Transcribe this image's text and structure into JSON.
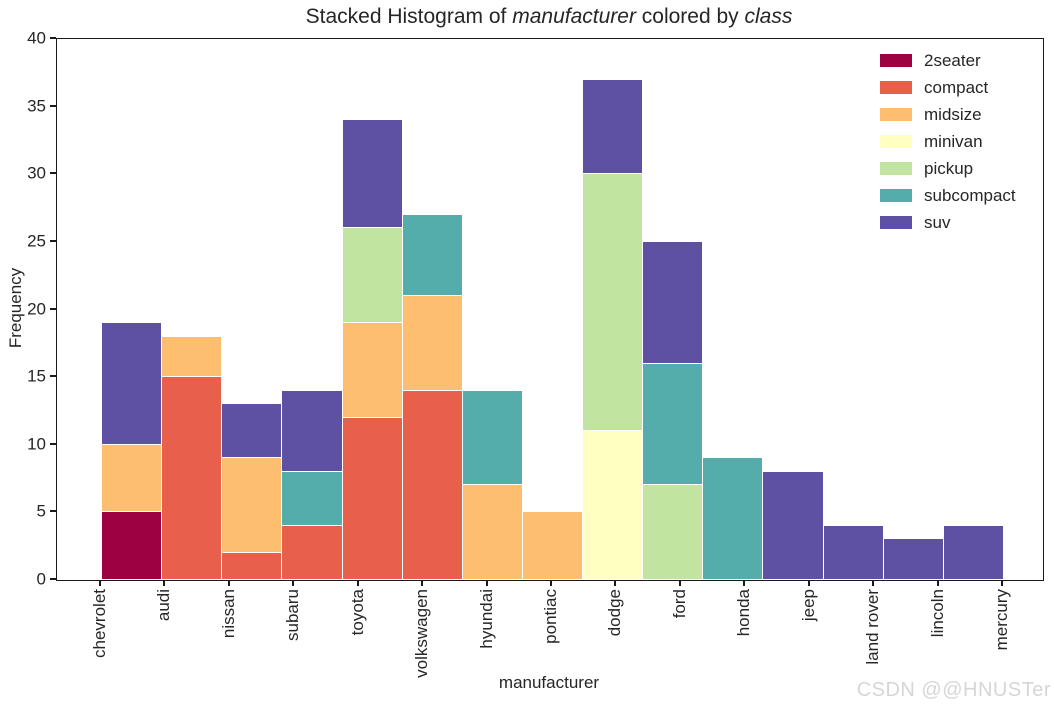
{
  "chart_data": {
    "type": "bar",
    "stacked": true,
    "title": "Stacked Histogram of manufacturer colored by class",
    "title_parts": [
      {
        "text": "Stacked Histogram of ",
        "italic": false
      },
      {
        "text": "manufacturer",
        "italic": true
      },
      {
        "text": " colored by ",
        "italic": false
      },
      {
        "text": "class",
        "italic": true
      }
    ],
    "xlabel": "manufacturer",
    "ylabel": "Frequency",
    "ylim": [
      0,
      40
    ],
    "yticks": [
      0,
      5,
      10,
      15,
      20,
      25,
      30,
      35,
      40
    ],
    "grid": false,
    "legend_position": "upper right",
    "categories": [
      "chevrolet",
      "audi",
      "nissan",
      "subaru",
      "toyota",
      "volkswagen",
      "hyundai",
      "pontiac",
      "dodge",
      "ford",
      "honda",
      "jeep",
      "land rover",
      "lincoln",
      "mercury"
    ],
    "series": [
      {
        "name": "2seater",
        "color": "#9e0142",
        "values": [
          5,
          0,
          0,
          0,
          0,
          0,
          0,
          0,
          0,
          0,
          0,
          0,
          0,
          0,
          0
        ]
      },
      {
        "name": "compact",
        "color": "#e8604c",
        "values": [
          0,
          15,
          2,
          4,
          12,
          14,
          0,
          0,
          0,
          0,
          0,
          0,
          0,
          0,
          0
        ]
      },
      {
        "name": "midsize",
        "color": "#fdbe70",
        "values": [
          5,
          3,
          7,
          0,
          7,
          7,
          7,
          5,
          0,
          0,
          0,
          0,
          0,
          0,
          0
        ]
      },
      {
        "name": "minivan",
        "color": "#feffc1",
        "values": [
          0,
          0,
          0,
          0,
          0,
          0,
          0,
          0,
          11,
          0,
          0,
          0,
          0,
          0,
          0
        ]
      },
      {
        "name": "pickup",
        "color": "#c1e5a1",
        "values": [
          0,
          0,
          0,
          0,
          7,
          0,
          0,
          0,
          19,
          7,
          0,
          0,
          0,
          0,
          0
        ]
      },
      {
        "name": "subcompact",
        "color": "#54adab",
        "values": [
          0,
          0,
          0,
          4,
          0,
          6,
          7,
          0,
          0,
          9,
          9,
          0,
          0,
          0,
          0
        ]
      },
      {
        "name": "suv",
        "color": "#5e50a2",
        "values": [
          9,
          0,
          4,
          6,
          8,
          0,
          0,
          0,
          7,
          9,
          0,
          8,
          4,
          3,
          4
        ]
      }
    ]
  },
  "watermark": {
    "text": "CSDN @@HNUSTer",
    "color": "#d6d6d6"
  }
}
